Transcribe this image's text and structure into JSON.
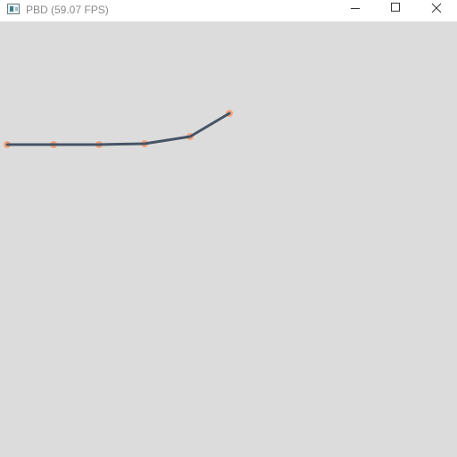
{
  "window": {
    "title": "PBD (59.07 FPS)",
    "controls": {
      "minimize": "minimize-icon",
      "maximize": "maximize-icon",
      "close": "close-icon"
    }
  },
  "colors": {
    "canvas_background": "#dcdcdc",
    "rope": "#465566",
    "particle": "#f4a57e"
  },
  "rope": {
    "particle_count": 6
  }
}
